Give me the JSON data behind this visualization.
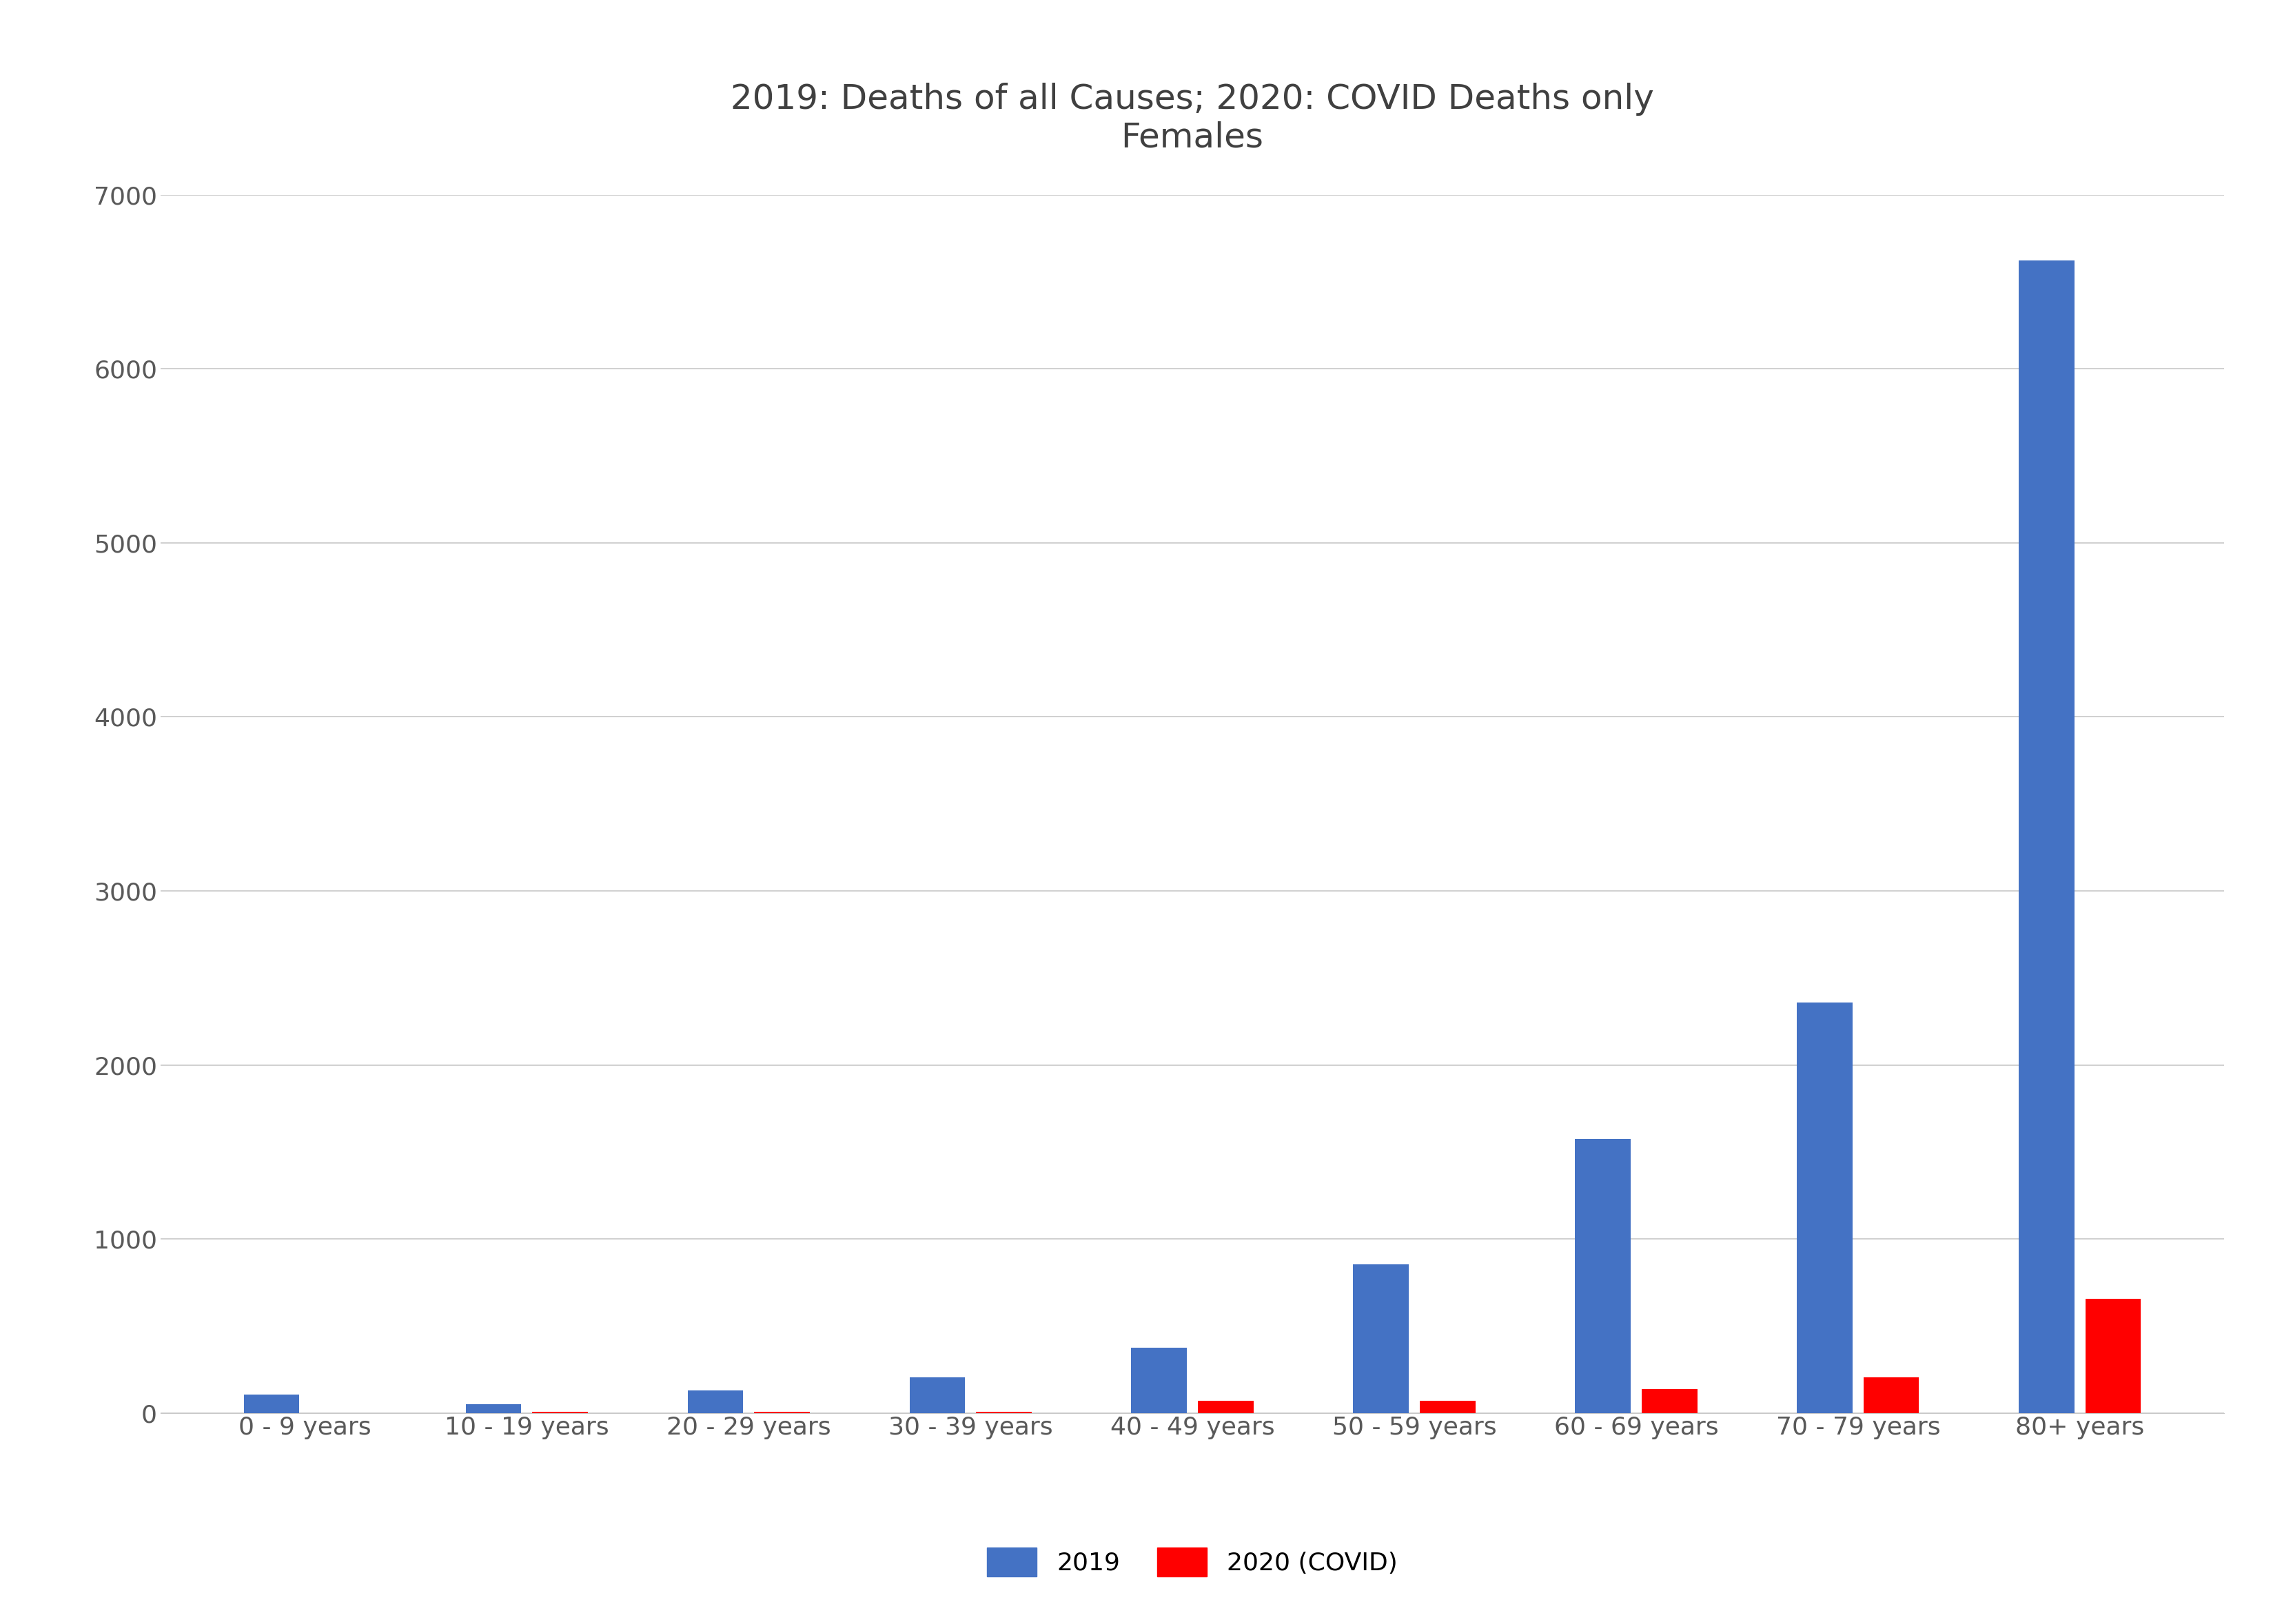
{
  "title_line1": "2019: Deaths of all Causes; 2020: COVID Deaths only",
  "title_line2": "Females",
  "categories": [
    "0 - 9 years",
    "10 - 19 years",
    "20 - 29 years",
    "30 - 39 years",
    "40 - 49 years",
    "50 - 59 years",
    "60 - 69 years",
    "70 - 79 years",
    "80+ years"
  ],
  "values_2019": [
    105,
    50,
    130,
    205,
    375,
    855,
    1575,
    2360,
    6625
  ],
  "values_2020": [
    0,
    5,
    8,
    8,
    70,
    70,
    135,
    205,
    655
  ],
  "color_2019": "#4472C4",
  "color_2020": "#FF0000",
  "ylim": [
    0,
    7000
  ],
  "yticks": [
    0,
    1000,
    2000,
    3000,
    4000,
    5000,
    6000,
    7000
  ],
  "legend_2019": "2019",
  "legend_2020": "2020 (COVID)",
  "background_color": "#FFFFFF",
  "grid_color": "#C8C8C8",
  "tick_color": "#595959",
  "title_color": "#404040",
  "title_fontsize": 36,
  "tick_fontsize": 26,
  "legend_fontsize": 26,
  "bar_width": 0.25
}
